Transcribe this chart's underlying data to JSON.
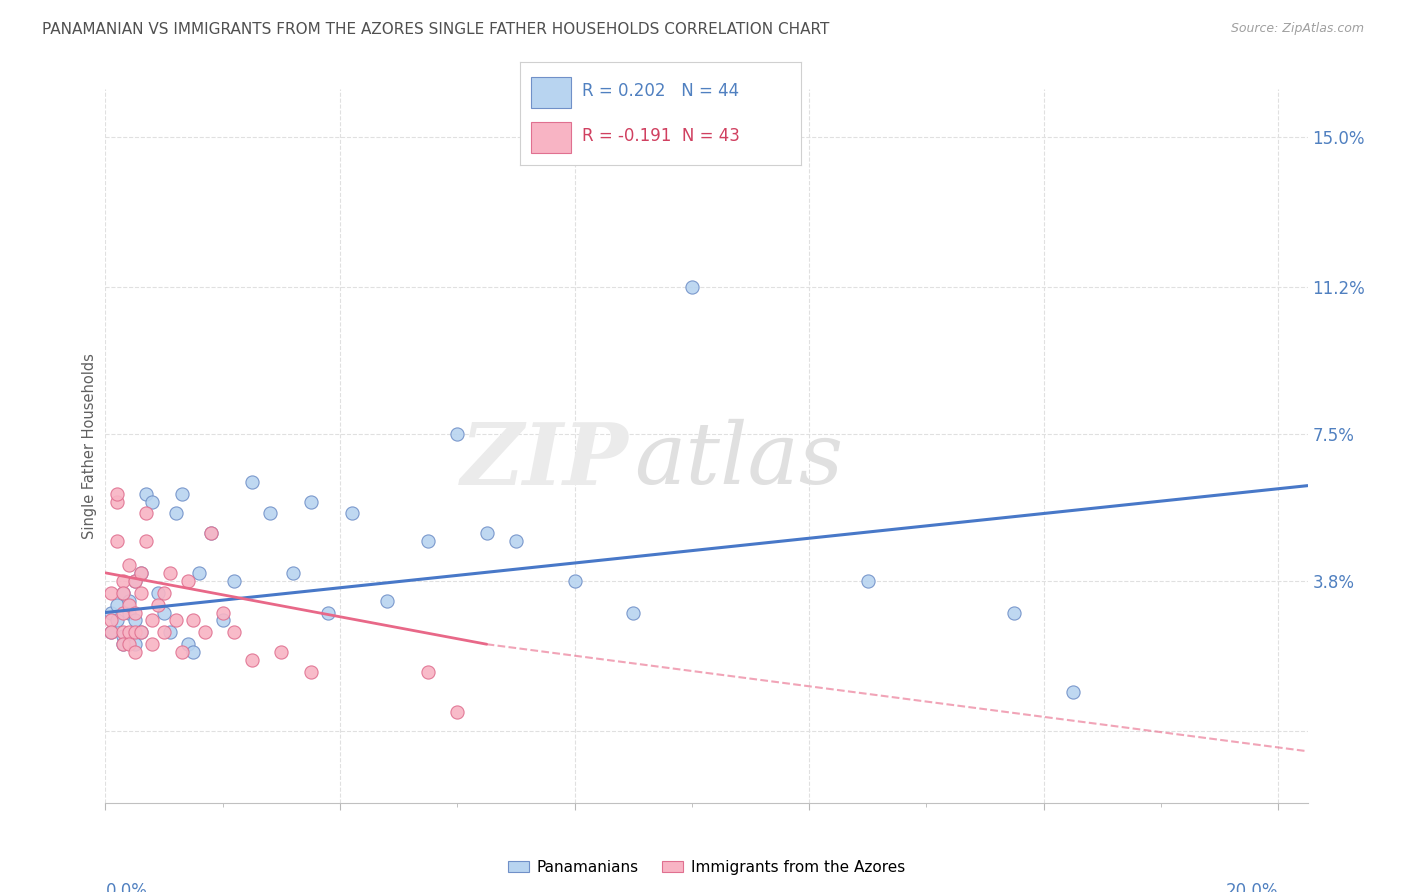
{
  "title": "PANAMANIAN VS IMMIGRANTS FROM THE AZORES SINGLE FATHER HOUSEHOLDS CORRELATION CHART",
  "source": "Source: ZipAtlas.com",
  "ylabel": "Single Father Households",
  "right_yticks": [
    0.0,
    0.038,
    0.075,
    0.112,
    0.15
  ],
  "right_yticklabels": [
    "",
    "3.8%",
    "7.5%",
    "11.2%",
    "15.0%"
  ],
  "xlim": [
    0.0,
    0.205
  ],
  "ylim": [
    -0.018,
    0.162
  ],
  "watermark": "ZIPatlas",
  "legend_r1": "R = 0.202   N = 44",
  "legend_r2": "R = -0.191  N = 43",
  "pan_color": "#b8d4f0",
  "pan_edge": "#7090c8",
  "azores_color": "#f8b4c4",
  "azores_edge": "#e07090",
  "trend_blue_color": "#4878c8",
  "trend_pink_color": "#e86888",
  "axis_label_color": "#5080c0",
  "title_color": "#505050",
  "grid_color": "#e0e0e0",
  "bg_color": "#ffffff",
  "marker_size": 90,
  "pan_x": [
    0.001,
    0.001,
    0.002,
    0.002,
    0.003,
    0.003,
    0.003,
    0.004,
    0.004,
    0.005,
    0.005,
    0.005,
    0.006,
    0.006,
    0.007,
    0.008,
    0.009,
    0.01,
    0.011,
    0.012,
    0.013,
    0.014,
    0.015,
    0.016,
    0.018,
    0.02,
    0.022,
    0.025,
    0.028,
    0.032,
    0.035,
    0.038,
    0.042,
    0.048,
    0.055,
    0.06,
    0.065,
    0.07,
    0.08,
    0.09,
    0.1,
    0.13,
    0.155,
    0.165
  ],
  "pan_y": [
    0.025,
    0.03,
    0.028,
    0.032,
    0.024,
    0.022,
    0.035,
    0.03,
    0.033,
    0.038,
    0.022,
    0.028,
    0.04,
    0.025,
    0.06,
    0.058,
    0.035,
    0.03,
    0.025,
    0.055,
    0.06,
    0.022,
    0.02,
    0.04,
    0.05,
    0.028,
    0.038,
    0.063,
    0.055,
    0.04,
    0.058,
    0.03,
    0.055,
    0.033,
    0.048,
    0.075,
    0.05,
    0.048,
    0.038,
    0.03,
    0.112,
    0.038,
    0.03,
    0.01
  ],
  "azores_x": [
    0.001,
    0.001,
    0.001,
    0.002,
    0.002,
    0.002,
    0.003,
    0.003,
    0.003,
    0.003,
    0.003,
    0.004,
    0.004,
    0.004,
    0.004,
    0.005,
    0.005,
    0.005,
    0.005,
    0.006,
    0.006,
    0.006,
    0.007,
    0.007,
    0.008,
    0.008,
    0.009,
    0.01,
    0.01,
    0.011,
    0.012,
    0.013,
    0.014,
    0.015,
    0.017,
    0.018,
    0.02,
    0.022,
    0.025,
    0.03,
    0.035,
    0.055,
    0.06
  ],
  "azores_y": [
    0.028,
    0.035,
    0.025,
    0.058,
    0.06,
    0.048,
    0.038,
    0.03,
    0.025,
    0.022,
    0.035,
    0.042,
    0.032,
    0.025,
    0.022,
    0.038,
    0.03,
    0.025,
    0.02,
    0.04,
    0.035,
    0.025,
    0.055,
    0.048,
    0.028,
    0.022,
    0.032,
    0.035,
    0.025,
    0.04,
    0.028,
    0.02,
    0.038,
    0.028,
    0.025,
    0.05,
    0.03,
    0.025,
    0.018,
    0.02,
    0.015,
    0.015,
    0.005
  ],
  "trend_blue_x0": 0.0,
  "trend_blue_x1": 0.205,
  "trend_blue_y0": 0.03,
  "trend_blue_y1": 0.062,
  "trend_pink_solid_x0": 0.0,
  "trend_pink_solid_x1": 0.065,
  "trend_pink_solid_y0": 0.04,
  "trend_pink_solid_y1": 0.022,
  "trend_pink_dash_x0": 0.065,
  "trend_pink_dash_x1": 0.205,
  "trend_pink_dash_y0": 0.022,
  "trend_pink_dash_y1": -0.005,
  "xticks_major": [
    0.0,
    0.04,
    0.08,
    0.12,
    0.16,
    0.2
  ],
  "xticks_minor": [
    0.02,
    0.06,
    0.1,
    0.14,
    0.18
  ]
}
